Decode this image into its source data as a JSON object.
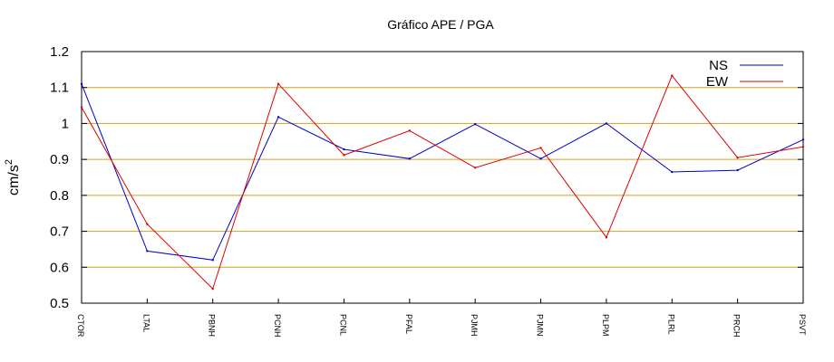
{
  "chart_data": {
    "type": "line",
    "title": "Gráfico  APE / PGA",
    "ylabel": "cm/s",
    "ylabel_superscript": "2",
    "xlabel": "",
    "ylim": [
      0.5,
      1.2
    ],
    "yticks": [
      "0.5",
      "0.6",
      "0.7",
      "0.8",
      "0.9",
      "1",
      "1.1",
      "1.2"
    ],
    "categories": [
      "CTOR",
      "LTAL",
      "PBNH",
      "PCNH",
      "PCNL",
      "PFAL",
      "PJMH",
      "PJMN",
      "PLPM",
      "PLRL",
      "PRCH",
      "PSVT"
    ],
    "grid": true,
    "grid_color": "#d4a017",
    "legend_position": "top-right",
    "series": [
      {
        "name": "NS",
        "color": "#0000cc",
        "values": [
          1.11,
          0.645,
          0.62,
          1.018,
          0.928,
          0.902,
          0.998,
          0.902,
          1.0,
          0.865,
          0.87,
          0.955
        ]
      },
      {
        "name": "EW",
        "color": "#dd0000",
        "values": [
          1.045,
          0.72,
          0.54,
          1.11,
          0.912,
          0.98,
          0.877,
          0.932,
          0.683,
          1.133,
          0.905,
          0.935
        ]
      }
    ]
  }
}
